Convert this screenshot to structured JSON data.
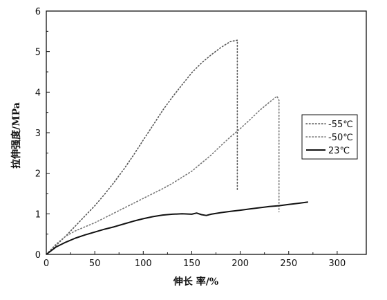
{
  "chart_data": {
    "type": "line",
    "xlabel": "伸长 率/%",
    "ylabel": "拉伸强度/MPa",
    "xlim": [
      0,
      330
    ],
    "ylim": [
      0,
      6
    ],
    "xticks": [
      0,
      50,
      100,
      150,
      200,
      250,
      300
    ],
    "yticks": [
      0,
      1,
      2,
      3,
      4,
      5,
      6
    ],
    "grid": false,
    "legend_position": "right",
    "series": [
      {
        "name": "-55℃",
        "style": "dotted",
        "color": "#555555",
        "x": [
          0,
          10,
          20,
          30,
          40,
          50,
          60,
          70,
          80,
          90,
          100,
          110,
          120,
          130,
          140,
          150,
          160,
          170,
          180,
          190,
          197,
          197,
          197
        ],
        "y": [
          0,
          0.22,
          0.45,
          0.7,
          0.95,
          1.2,
          1.48,
          1.78,
          2.1,
          2.45,
          2.82,
          3.18,
          3.55,
          3.88,
          4.18,
          4.48,
          4.72,
          4.92,
          5.1,
          5.25,
          5.28,
          3.4,
          1.6
        ]
      },
      {
        "name": "-50℃",
        "style": "dotted",
        "color": "#777777",
        "x": [
          0,
          10,
          20,
          30,
          40,
          50,
          60,
          70,
          80,
          90,
          100,
          110,
          120,
          130,
          140,
          150,
          160,
          170,
          180,
          190,
          200,
          210,
          220,
          230,
          238,
          240,
          240
        ],
        "y": [
          0,
          0.25,
          0.45,
          0.58,
          0.68,
          0.78,
          0.9,
          1.02,
          1.14,
          1.26,
          1.38,
          1.5,
          1.62,
          1.75,
          1.9,
          2.05,
          2.25,
          2.45,
          2.68,
          2.9,
          3.1,
          3.32,
          3.55,
          3.75,
          3.9,
          3.8,
          1.05
        ]
      },
      {
        "name": "23℃",
        "style": "solid",
        "color": "#111111",
        "x": [
          0,
          10,
          20,
          30,
          40,
          50,
          60,
          70,
          80,
          90,
          100,
          110,
          120,
          130,
          140,
          150,
          155,
          160,
          165,
          170,
          180,
          190,
          200,
          210,
          220,
          230,
          240,
          250,
          260,
          270
        ],
        "y": [
          0,
          0.18,
          0.3,
          0.4,
          0.48,
          0.55,
          0.62,
          0.68,
          0.75,
          0.82,
          0.88,
          0.93,
          0.97,
          0.99,
          1.0,
          0.99,
          1.02,
          0.98,
          0.96,
          0.99,
          1.03,
          1.06,
          1.09,
          1.12,
          1.15,
          1.18,
          1.2,
          1.23,
          1.26,
          1.29
        ]
      }
    ]
  }
}
